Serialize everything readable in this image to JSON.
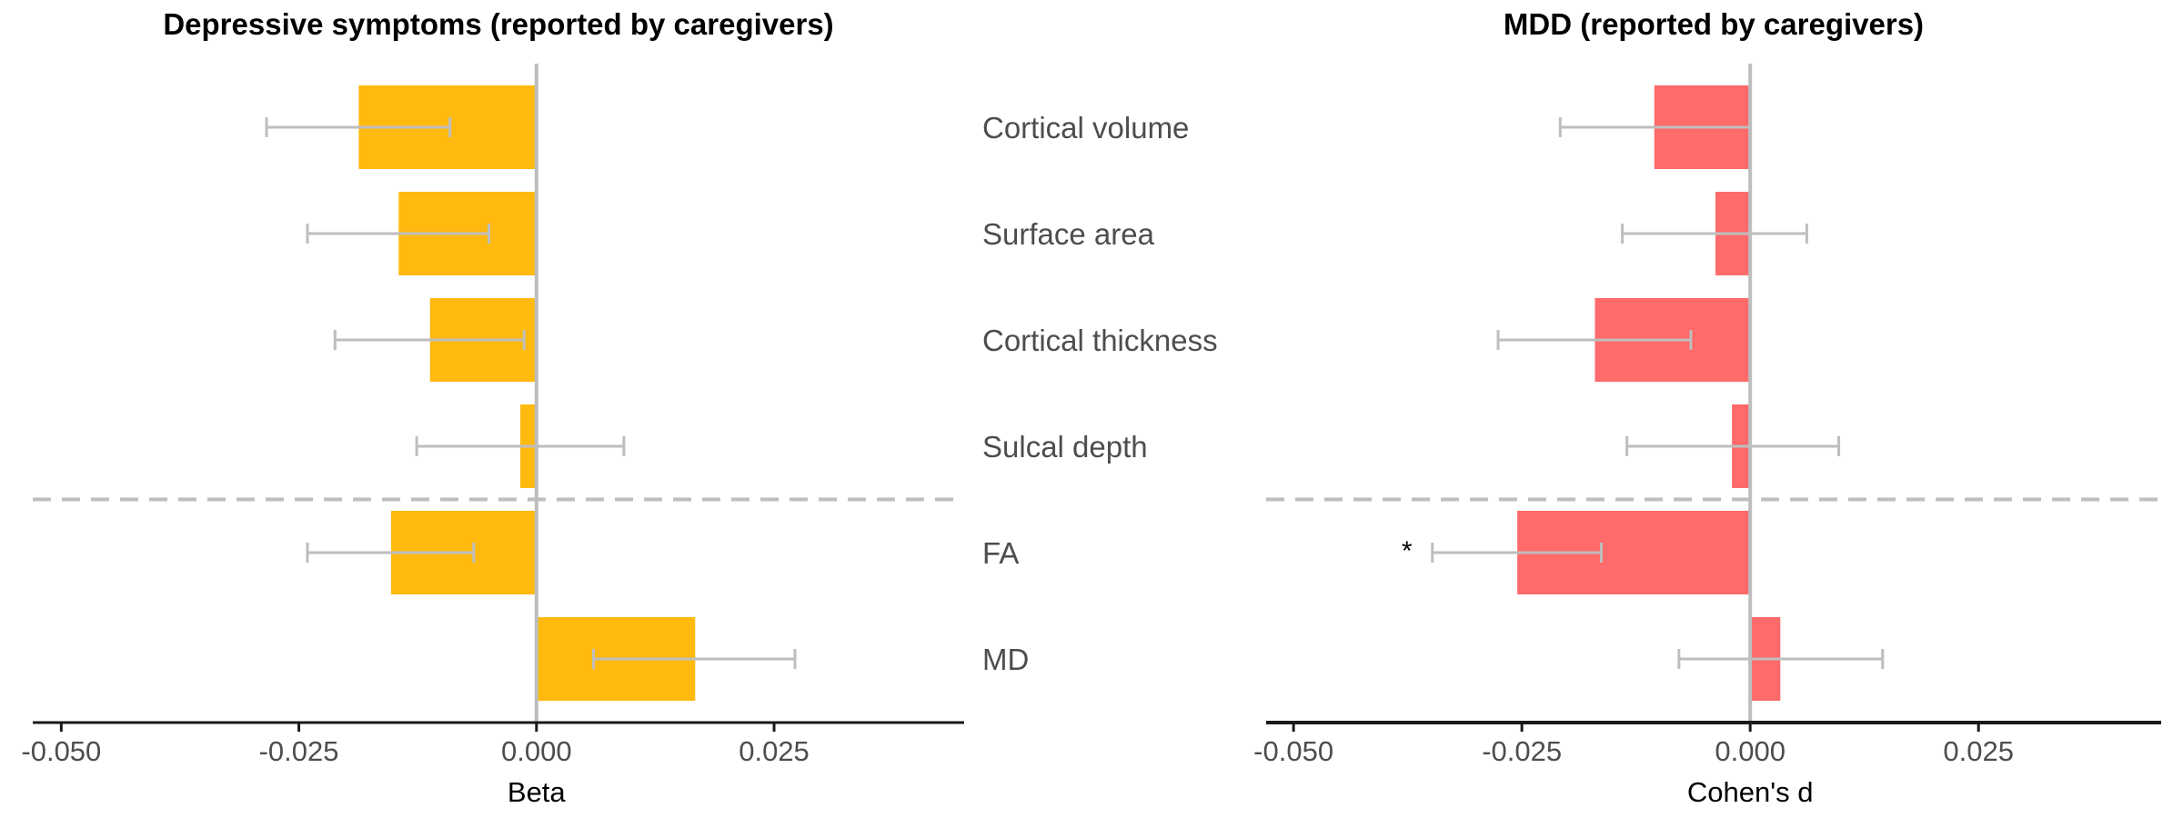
{
  "chart_data": {
    "type": "bar",
    "orientation": "horizontal",
    "categories": [
      "Cortical volume",
      "Surface area",
      "Cortical thickness",
      "Sulcal depth",
      "FA",
      "MD"
    ],
    "panels": [
      {
        "title": "Depressive symptoms (reported by caregivers)",
        "xlabel": "Beta",
        "xlim": [
          -0.053,
          0.045
        ],
        "xticks": [
          -0.05,
          -0.025,
          0.0,
          0.025
        ],
        "xtick_labels": [
          "-0.050",
          "-0.025",
          "0.000",
          "0.025"
        ],
        "bar_color": "#FFB90F",
        "values": [
          -0.0187,
          -0.0145,
          -0.0112,
          -0.0017,
          -0.0153,
          0.0167
        ],
        "ci_low": [
          -0.0284,
          -0.0241,
          -0.0212,
          -0.0126,
          -0.0241,
          0.006
        ],
        "ci_high": [
          -0.0091,
          -0.005,
          -0.0013,
          0.0092,
          -0.0066,
          0.0272
        ],
        "annotations": [
          "",
          "",
          "",
          "",
          "",
          ""
        ]
      },
      {
        "title": "MDD (reported by caregivers)",
        "xlabel": "Cohen's d",
        "xlim": [
          -0.053,
          0.045
        ],
        "xticks": [
          -0.05,
          -0.025,
          0.0,
          0.025
        ],
        "xtick_labels": [
          "-0.050",
          "-0.025",
          "0.000",
          "0.025"
        ],
        "bar_color": "#FF6A6A",
        "values": [
          -0.0105,
          -0.0038,
          -0.017,
          -0.002,
          -0.0255,
          0.0033
        ],
        "ci_low": [
          -0.0208,
          -0.014,
          -0.0276,
          -0.0135,
          -0.0348,
          -0.0078
        ],
        "ci_high": [
          0.0,
          0.0062,
          -0.0065,
          0.0097,
          -0.0163,
          0.0145
        ],
        "annotations": [
          "",
          "",
          "",
          "",
          "*",
          ""
        ]
      }
    ],
    "reference_line_x": 0,
    "separator_after_category": "Sulcal depth",
    "grid": false,
    "legend": "none",
    "errorbar_color": "#BEBEBE"
  }
}
